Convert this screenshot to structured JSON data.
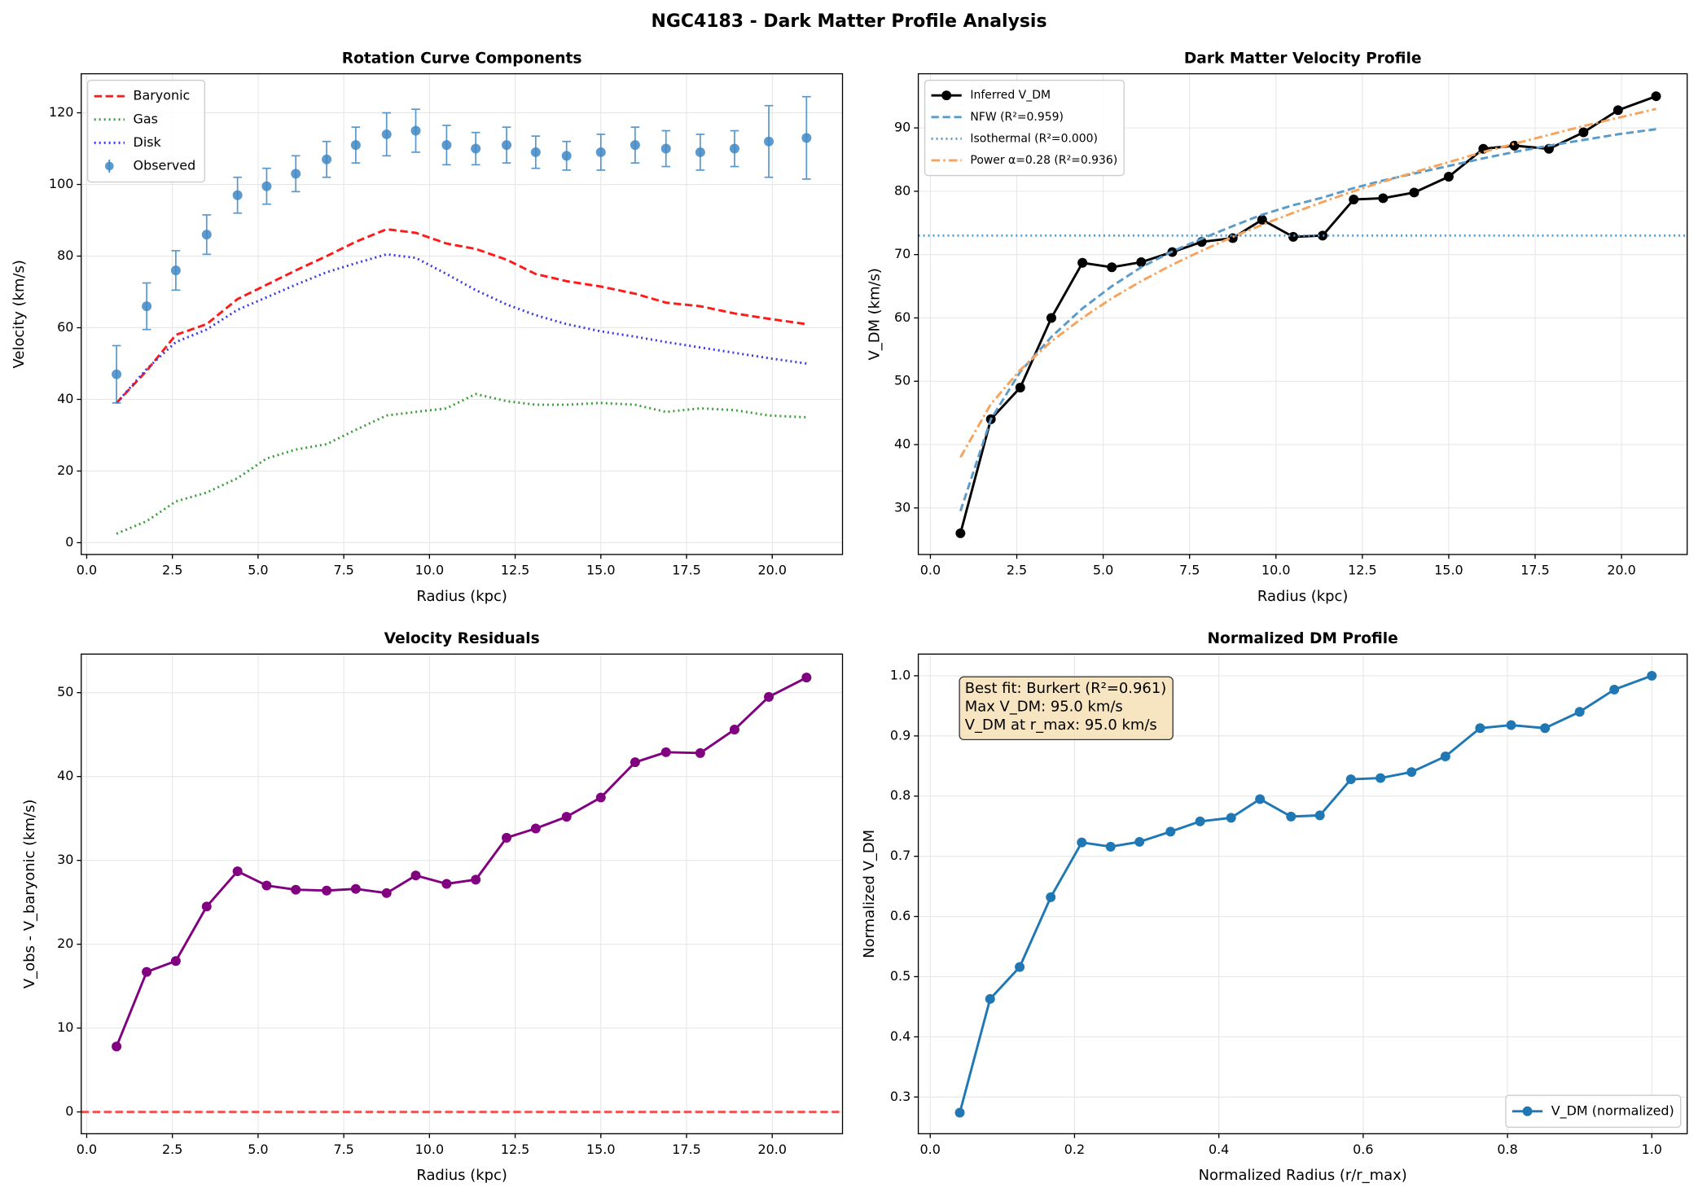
{
  "figure_title": "NGC4183 - Dark Matter Profile Analysis",
  "chart_data": [
    {
      "type": "line",
      "title": "Rotation Curve Components",
      "xlabel": "Radius (kpc)",
      "ylabel": "Velocity (km/s)",
      "x": [
        0.87,
        1.75,
        2.6,
        3.5,
        4.4,
        5.25,
        6.1,
        7.0,
        7.85,
        8.75,
        9.6,
        10.5,
        11.35,
        12.25,
        13.1,
        14.0,
        15.0,
        16.0,
        16.9,
        17.9,
        18.9,
        19.9,
        21.0
      ],
      "xlim": [
        -0.16,
        22.05
      ],
      "ylim": [
        -3.3,
        130.9
      ],
      "xticks": [
        {
          "value": 0,
          "label": "0.0"
        },
        {
          "value": 2.5,
          "label": "2.5"
        },
        {
          "value": 5,
          "label": "5.0"
        },
        {
          "value": 7.5,
          "label": "7.5"
        },
        {
          "value": 10,
          "label": "10.0"
        },
        {
          "value": 12.5,
          "label": "12.5"
        },
        {
          "value": 15,
          "label": "15.0"
        },
        {
          "value": 17.5,
          "label": "17.5"
        },
        {
          "value": 20,
          "label": "20.0"
        }
      ],
      "yticks": [
        0,
        20,
        40,
        60,
        80,
        100,
        120
      ],
      "grid": true,
      "legend": "upper left",
      "series": [
        {
          "name": "Baryonic",
          "color": "#ff1a1a",
          "dash": "dashed",
          "values": [
            39,
            48,
            58,
            61,
            68,
            72,
            76,
            80,
            84,
            87.5,
            86.5,
            83.5,
            82,
            79,
            75,
            73,
            71.5,
            69.5,
            67,
            66,
            64,
            62.5,
            61
          ]
        },
        {
          "name": "Gas",
          "color": "#3a9e3a",
          "dash": "dotted",
          "values": [
            2.5,
            6,
            11.5,
            14,
            18,
            23.5,
            26,
            27.5,
            31.5,
            35.5,
            36.5,
            37.5,
            41.5,
            39.5,
            38.5,
            38.5,
            39,
            38.5,
            36.5,
            37.5,
            37,
            35.5,
            35
          ]
        },
        {
          "name": "Disk",
          "color": "#3b3be0",
          "dash": "dotted",
          "values": [
            39,
            48.5,
            56,
            59.5,
            65,
            68.5,
            72,
            75.5,
            78,
            80.5,
            79.5,
            75,
            70.5,
            66.5,
            63.5,
            61,
            59,
            57.5,
            56,
            54.5,
            53,
            51.5,
            50
          ]
        },
        {
          "name": "Observed",
          "color": "#3f88c5",
          "errorbar": true,
          "values": [
            47,
            66,
            76,
            86,
            97,
            99.5,
            103,
            107,
            111,
            114,
            115,
            111,
            110,
            111,
            109,
            108,
            109,
            111,
            110,
            109,
            110,
            112,
            113
          ],
          "errors": [
            8,
            6.5,
            5.5,
            5.5,
            5,
            5,
            5,
            5,
            5,
            6,
            6,
            5.5,
            4.5,
            5,
            4.5,
            4,
            5,
            5,
            5,
            5,
            5,
            10,
            11.5
          ]
        }
      ]
    },
    {
      "type": "line",
      "title": "Dark Matter Velocity Profile",
      "xlabel": "Radius (kpc)",
      "ylabel": "V_DM (km/s)",
      "x": [
        0.87,
        1.75,
        2.6,
        3.5,
        4.4,
        5.25,
        6.1,
        7.0,
        7.85,
        8.75,
        9.6,
        10.5,
        11.35,
        12.25,
        13.1,
        14.0,
        15.0,
        16.0,
        16.9,
        17.9,
        18.9,
        19.9,
        21.0
      ],
      "xlim": [
        -0.35,
        21.9
      ],
      "ylim": [
        22.65,
        98.55
      ],
      "xticks": [
        {
          "value": 0,
          "label": "0.0"
        },
        {
          "value": 2.5,
          "label": "2.5"
        },
        {
          "value": 5,
          "label": "5.0"
        },
        {
          "value": 7.5,
          "label": "7.5"
        },
        {
          "value": 10,
          "label": "10.0"
        },
        {
          "value": 12.5,
          "label": "12.5"
        },
        {
          "value": 15,
          "label": "15.0"
        },
        {
          "value": 17.5,
          "label": "17.5"
        },
        {
          "value": 20,
          "label": "20.0"
        }
      ],
      "yticks": [
        30,
        40,
        50,
        60,
        70,
        80,
        90
      ],
      "grid": true,
      "legend": "upper left",
      "series": [
        {
          "name": "Inferred V_DM",
          "color": "#000000",
          "marker": true,
          "values": [
            26,
            44,
            49,
            60,
            68.7,
            68,
            68.8,
            70.4,
            72,
            72.6,
            75.5,
            72.8,
            73,
            78.7,
            78.9,
            79.8,
            82.3,
            86.7,
            87.2,
            86.7,
            89.3,
            92.8,
            95
          ]
        },
        {
          "name": "NFW (R²=0.959)",
          "color": "#5b9bc8",
          "dash": "dashed",
          "values": [
            29.5,
            44,
            51.5,
            57,
            61.5,
            65,
            68,
            70.5,
            72.5,
            74.5,
            76.3,
            77.8,
            79,
            80.5,
            81.7,
            82.8,
            84,
            85.2,
            86.2,
            87.2,
            88.1,
            89,
            89.8
          ]
        },
        {
          "name": "Isothermal (R²=0.000)",
          "color": "#5b9bc8",
          "dash": "dotted",
          "constant": 73
        },
        {
          "name": "Power α=0.28 (R²=0.936)",
          "color": "#f7a35c",
          "dash": "dashdot",
          "values": [
            38,
            46.4,
            51.8,
            56.3,
            60,
            63.1,
            65.8,
            68.4,
            70.6,
            72.8,
            74.7,
            76.6,
            78.3,
            80,
            81.5,
            83,
            84.6,
            86.2,
            87.5,
            88.9,
            90.3,
            91.6,
            93
          ]
        }
      ]
    },
    {
      "type": "line",
      "title": "Velocity Residuals",
      "xlabel": "Radius (kpc)",
      "ylabel": "V_obs - V_baryonic (km/s)",
      "x": [
        0.87,
        1.75,
        2.6,
        3.5,
        4.4,
        5.25,
        6.1,
        7.0,
        7.85,
        8.75,
        9.6,
        10.5,
        11.35,
        12.25,
        13.1,
        14.0,
        15.0,
        16.0,
        16.9,
        17.9,
        18.9,
        19.9,
        21.0
      ],
      "xlim": [
        -0.16,
        22.05
      ],
      "ylim": [
        -2.6,
        54.6
      ],
      "xticks": [
        {
          "value": 0,
          "label": "0.0"
        },
        {
          "value": 2.5,
          "label": "2.5"
        },
        {
          "value": 5,
          "label": "5.0"
        },
        {
          "value": 7.5,
          "label": "7.5"
        },
        {
          "value": 10,
          "label": "10.0"
        },
        {
          "value": 12.5,
          "label": "12.5"
        },
        {
          "value": 15,
          "label": "15.0"
        },
        {
          "value": 17.5,
          "label": "17.5"
        },
        {
          "value": 20,
          "label": "20.0"
        }
      ],
      "yticks": [
        0,
        10,
        20,
        30,
        40,
        50
      ],
      "grid": true,
      "reference_line": {
        "value": 0,
        "color": "#ef4444"
      },
      "series": [
        {
          "color": "#800080",
          "marker": true,
          "values": [
            7.8,
            16.7,
            18,
            24.5,
            28.7,
            27,
            26.5,
            26.4,
            26.6,
            26.1,
            28.2,
            27.2,
            27.7,
            32.7,
            33.8,
            35.2,
            37.5,
            41.7,
            42.9,
            42.8,
            45.6,
            49.5,
            51.8
          ]
        }
      ]
    },
    {
      "type": "line",
      "title": "Normalized DM Profile",
      "xlabel": "Normalized Radius (r/r_max)",
      "ylabel": "Normalized V_DM",
      "x": [
        0.041,
        0.083,
        0.124,
        0.167,
        0.21,
        0.25,
        0.29,
        0.333,
        0.374,
        0.417,
        0.457,
        0.5,
        0.54,
        0.583,
        0.624,
        0.667,
        0.714,
        0.762,
        0.805,
        0.852,
        0.9,
        0.948,
        1.0
      ],
      "xlim": [
        -0.0165,
        1.049
      ],
      "ylim": [
        0.239,
        1.036
      ],
      "xticks": [
        {
          "value": 0,
          "label": "0.0"
        },
        {
          "value": 0.2,
          "label": "0.2"
        },
        {
          "value": 0.4,
          "label": "0.4"
        },
        {
          "value": 0.6,
          "label": "0.6"
        },
        {
          "value": 0.8,
          "label": "0.8"
        },
        {
          "value": 1,
          "label": "1.0"
        }
      ],
      "yticks": [
        0.3,
        0.4,
        0.5,
        0.6,
        0.7,
        0.8,
        0.9,
        {
          "value": 1,
          "label": "1.0"
        }
      ],
      "grid": true,
      "legend": "lower right",
      "annotation": [
        "Best fit: Burkert (R²=0.961)",
        "Max V_DM: 95.0 km/s",
        "V_DM at r_max: 95.0 km/s"
      ],
      "series": [
        {
          "name": "V_DM (normalized)",
          "color": "#1f77b4",
          "marker": true,
          "values": [
            0.274,
            0.463,
            0.516,
            0.632,
            0.723,
            0.716,
            0.724,
            0.741,
            0.758,
            0.764,
            0.795,
            0.766,
            0.768,
            0.828,
            0.83,
            0.84,
            0.866,
            0.913,
            0.918,
            0.913,
            0.94,
            0.977,
            1.0
          ]
        }
      ]
    }
  ]
}
